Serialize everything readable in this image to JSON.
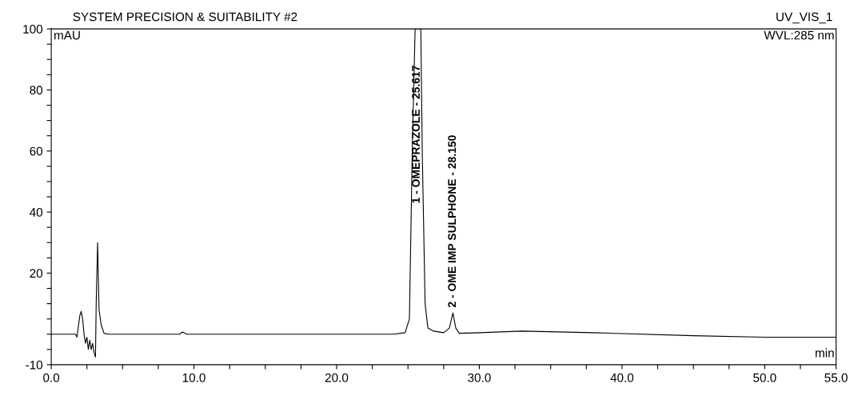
{
  "chart_data": {
    "type": "line",
    "title": "SYSTEM PRECISION & SUITABILITY #2",
    "subtitle": "UV_VIS_1",
    "ylabel": "mAU",
    "xlabel": "min",
    "annotations": [
      "WVL:285 nm",
      "1 - OMEPRAZOLE - 25.617",
      "2 - OME IMP SULPHONE - 28.150"
    ],
    "series": [
      {
        "color": "#000000",
        "x": [
          0,
          1.7,
          1.8,
          2.0,
          2.1,
          2.2,
          2.3,
          2.4,
          2.5,
          2.6,
          2.7,
          2.8,
          2.9,
          3.0,
          3.1,
          3.15,
          3.25,
          3.35,
          3.5,
          3.7,
          4.0,
          9.0,
          9.2,
          9.5,
          24.0,
          24.8,
          25.1,
          25.3,
          25.5,
          25.9,
          26.0,
          26.2,
          26.4,
          26.8,
          27.5,
          27.9,
          28.15,
          28.35,
          28.6,
          30,
          33,
          38,
          45,
          50,
          55
        ],
        "values": [
          0,
          0,
          -1,
          6,
          7.5,
          5,
          0,
          -3,
          -1,
          -5,
          -2,
          -5,
          -3,
          -6,
          -7.5,
          10,
          30,
          8,
          3,
          0.3,
          0,
          0,
          0.7,
          0,
          0,
          0.5,
          5,
          60,
          100,
          100,
          60,
          10,
          2,
          1,
          0.5,
          2,
          7,
          2,
          0.3,
          0.5,
          1,
          0.5,
          -0.5,
          -1,
          -1
        ]
      }
    ],
    "xlim": [
      0,
      55
    ],
    "ylim": [
      -10,
      100
    ],
    "xticks": [
      {
        "value": 0,
        "label": "0.0"
      },
      {
        "value": 2.5,
        "label": null
      },
      {
        "value": 5,
        "label": null
      },
      {
        "value": 7.5,
        "label": null
      },
      {
        "value": 10,
        "label": "10.0"
      },
      {
        "value": 12.5,
        "label": null
      },
      {
        "value": 15,
        "label": null
      },
      {
        "value": 17.5,
        "label": null
      },
      {
        "value": 20,
        "label": "20.0"
      },
      {
        "value": 22.5,
        "label": null
      },
      {
        "value": 25,
        "label": null
      },
      {
        "value": 27.5,
        "label": null
      },
      {
        "value": 30,
        "label": "30.0"
      },
      {
        "value": 32.5,
        "label": null
      },
      {
        "value": 35,
        "label": null
      },
      {
        "value": 37.5,
        "label": null
      },
      {
        "value": 40,
        "label": "40.0"
      },
      {
        "value": 42.5,
        "label": null
      },
      {
        "value": 45,
        "label": null
      },
      {
        "value": 47.5,
        "label": null
      },
      {
        "value": 50,
        "label": "50.0"
      },
      {
        "value": 52.5,
        "label": null
      },
      {
        "value": 55,
        "label": "55.0"
      }
    ],
    "yticks": [
      -10,
      {
        "value": -5,
        "label": null
      },
      {
        "value": 0,
        "label": null
      },
      {
        "value": 5,
        "label": null
      },
      {
        "value": 10,
        "label": null
      },
      {
        "value": 15,
        "label": null
      },
      20,
      {
        "value": 25,
        "label": null
      },
      {
        "value": 30,
        "label": null
      },
      {
        "value": 35,
        "label": null
      },
      40,
      {
        "value": 45,
        "label": null
      },
      {
        "value": 50,
        "label": null
      },
      {
        "value": 55,
        "label": null
      },
      60,
      {
        "value": 65,
        "label": null
      },
      {
        "value": 70,
        "label": null
      },
      {
        "value": 75,
        "label": null
      },
      80,
      {
        "value": 85,
        "label": null
      },
      {
        "value": 90,
        "label": null
      },
      {
        "value": 95,
        "label": null
      },
      100
    ],
    "grid": false,
    "legend": false,
    "marker": "none",
    "line_style": "solid"
  }
}
